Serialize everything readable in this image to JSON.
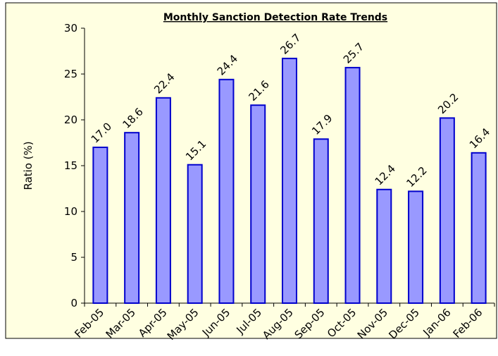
{
  "chart_data": {
    "type": "bar",
    "title": "Monthly Sanction Detection Rate Trends",
    "y_label": "Ratio (%)",
    "categories": [
      "Feb-05",
      "Mar-05",
      "Apr-05",
      "May-05",
      "Jun-05",
      "Jul-05",
      "Aug-05",
      "Sep-05",
      "Oct-05",
      "Nov-05",
      "Dec-05",
      "Jan-06",
      "Feb-06"
    ],
    "values": [
      17.0,
      18.6,
      22.4,
      15.1,
      24.4,
      21.6,
      26.7,
      17.9,
      25.7,
      12.4,
      12.2,
      20.2,
      16.4
    ],
    "value_labels": [
      "17.0",
      "18.6",
      "22.4",
      "15.1",
      "24.4",
      "21.6",
      "26.7",
      "17.9",
      "25.7",
      "12.4",
      "12.2",
      "20.2",
      "16.4"
    ],
    "color": "#9999ff",
    "ylim": [
      0,
      30
    ],
    "yticks": [
      0,
      5,
      10,
      15,
      20,
      25,
      30
    ],
    "grid": false
  }
}
